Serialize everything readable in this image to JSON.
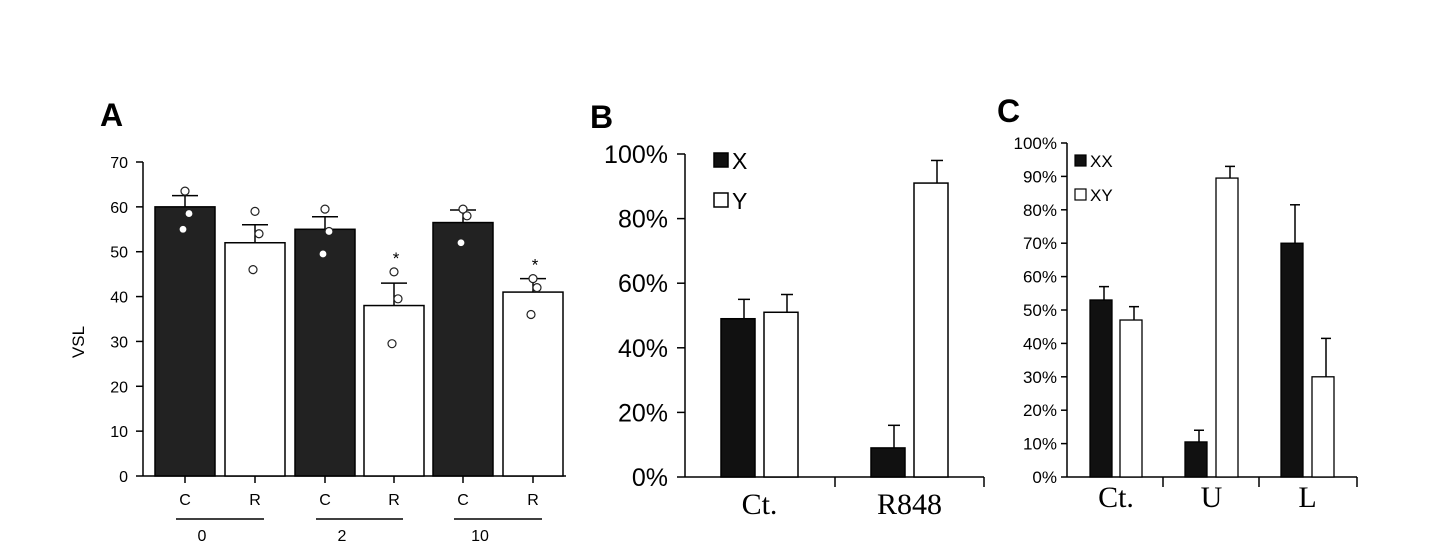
{
  "chart_data": [
    {
      "panel": "A",
      "type": "bar",
      "ylabel": "VSL",
      "ylim": [
        0,
        70
      ],
      "yticks": [
        0,
        10,
        20,
        30,
        40,
        50,
        60,
        70
      ],
      "categories": [
        "C",
        "R",
        "C",
        "R",
        "C",
        "R"
      ],
      "groups": [
        "0",
        "2",
        "10"
      ],
      "values": [
        60,
        52,
        55,
        38,
        56.5,
        41
      ],
      "errors": [
        2.5,
        4,
        2.8,
        5,
        2.8,
        3
      ],
      "fills": [
        "#222222",
        "#ffffff",
        "#222222",
        "#ffffff",
        "#222222",
        "#ffffff"
      ],
      "points": [
        [
          63.5,
          58.5,
          55
        ],
        [
          59,
          54,
          46
        ],
        [
          59.5,
          54.5,
          49.5
        ],
        [
          45.5,
          39.5,
          29.5
        ],
        [
          59.5,
          58,
          52
        ],
        [
          44,
          42,
          36
        ]
      ],
      "significance": [
        "",
        "",
        "",
        "*",
        "",
        "*"
      ],
      "grid": false
    },
    {
      "panel": "B",
      "type": "bar",
      "ylim": [
        0,
        1
      ],
      "yticks": [
        "0%",
        "20%",
        "40%",
        "60%",
        "80%",
        "100%"
      ],
      "categories": [
        "Ct.",
        "R848"
      ],
      "series": [
        {
          "name": "X",
          "values": [
            0.49,
            0.09
          ],
          "errors": [
            0.06,
            0.07
          ],
          "color": "#111111"
        },
        {
          "name": "Y",
          "values": [
            0.51,
            0.91
          ],
          "errors": [
            0.055,
            0.07
          ],
          "color": "#ffffff"
        }
      ],
      "legend": "top-left",
      "grid": false
    },
    {
      "panel": "C",
      "type": "bar",
      "ylim": [
        0,
        1
      ],
      "yticks": [
        "0%",
        "10%",
        "20%",
        "30%",
        "40%",
        "50%",
        "60%",
        "70%",
        "80%",
        "90%",
        "100%"
      ],
      "categories": [
        "Ct.",
        "U",
        "L"
      ],
      "series": [
        {
          "name": "XX",
          "values": [
            0.53,
            0.105,
            0.7
          ],
          "errors": [
            0.04,
            0.035,
            0.115
          ],
          "color": "#111111"
        },
        {
          "name": "XY",
          "values": [
            0.47,
            0.895,
            0.3
          ],
          "errors": [
            0.04,
            0.035,
            0.115
          ],
          "color": "#ffffff"
        }
      ],
      "legend": "top-left",
      "grid": false
    }
  ]
}
